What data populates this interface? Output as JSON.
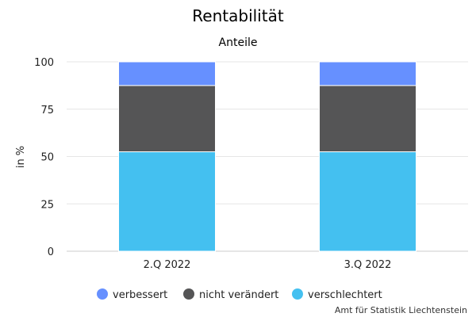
{
  "chart_data": {
    "type": "bar",
    "stacked": true,
    "title": "Rentabilität",
    "subtitle": "Anteile",
    "ylabel": "in %",
    "xlabel": "",
    "ylim": [
      0,
      100
    ],
    "yticks": [
      0,
      25,
      50,
      75,
      100
    ],
    "grid": true,
    "legend_position": "bottom",
    "categories": [
      "2.Q 2022",
      "3.Q 2022"
    ],
    "series": [
      {
        "name": "verschlechtert",
        "values": [
          52.5,
          52.5
        ],
        "color": "#44c0f0"
      },
      {
        "name": "nicht verändert",
        "values": [
          35,
          35
        ],
        "color": "#555556"
      },
      {
        "name": "verbessert",
        "values": [
          12.5,
          12.5
        ],
        "color": "#6690ff"
      }
    ],
    "legend_order": [
      "verbessert",
      "nicht verändert",
      "verschlechtert"
    ]
  },
  "credit": "Amt für Statistik Liechtenstein"
}
